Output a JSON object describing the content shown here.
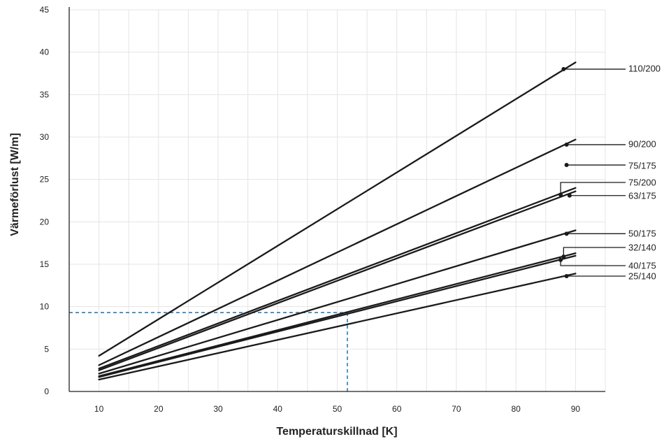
{
  "chart_data": {
    "type": "line",
    "xlabel": "Temperaturskillnad [K]",
    "ylabel": "Värmeförlust [W/m]",
    "xlim": [
      5,
      95
    ],
    "ylim": [
      0,
      45
    ],
    "x_ticks": [
      10,
      20,
      30,
      40,
      50,
      60,
      70,
      80,
      90
    ],
    "y_ticks": [
      0,
      5,
      10,
      15,
      20,
      25,
      30,
      35,
      40,
      45
    ],
    "grid": true,
    "colors": {
      "series": "#1a1a1a",
      "grid": "#e4e4e4",
      "reference": "#2b7bb5"
    },
    "series": [
      {
        "name": "110/200",
        "x": [
          10,
          90
        ],
        "y": [
          4.2,
          38.8
        ],
        "marker": [
          88,
          38.0
        ]
      },
      {
        "name": "90/200",
        "x": [
          10,
          90
        ],
        "y": [
          3.1,
          29.7
        ],
        "marker": [
          88.5,
          29.1
        ]
      },
      {
        "name": "75/175",
        "x": [],
        "y": [],
        "marker": [
          88.5,
          26.7
        ]
      },
      {
        "name": "75/200",
        "x": [
          10,
          90
        ],
        "y": [
          2.7,
          24.0
        ],
        "marker": [
          87.5,
          23.2
        ]
      },
      {
        "name": "63/175",
        "x": [
          10,
          90
        ],
        "y": [
          2.5,
          23.6
        ],
        "marker": [
          89,
          23.1
        ]
      },
      {
        "name": "50/175",
        "x": [
          10,
          90
        ],
        "y": [
          2.1,
          19.0
        ],
        "marker": [
          88.5,
          18.6
        ]
      },
      {
        "name": "32/140",
        "x": [
          10,
          90
        ],
        "y": [
          1.8,
          16.3
        ],
        "marker": [
          88,
          15.9
        ]
      },
      {
        "name": "40/175",
        "x": [
          10,
          90
        ],
        "y": [
          1.7,
          16.0
        ],
        "marker": [
          87.5,
          15.5
        ]
      },
      {
        "name": "25/140",
        "x": [
          10,
          90
        ],
        "y": [
          1.4,
          13.9
        ],
        "marker": [
          88.5,
          13.6
        ]
      }
    ],
    "reference": {
      "x": 51.7,
      "y": 9.3
    }
  }
}
